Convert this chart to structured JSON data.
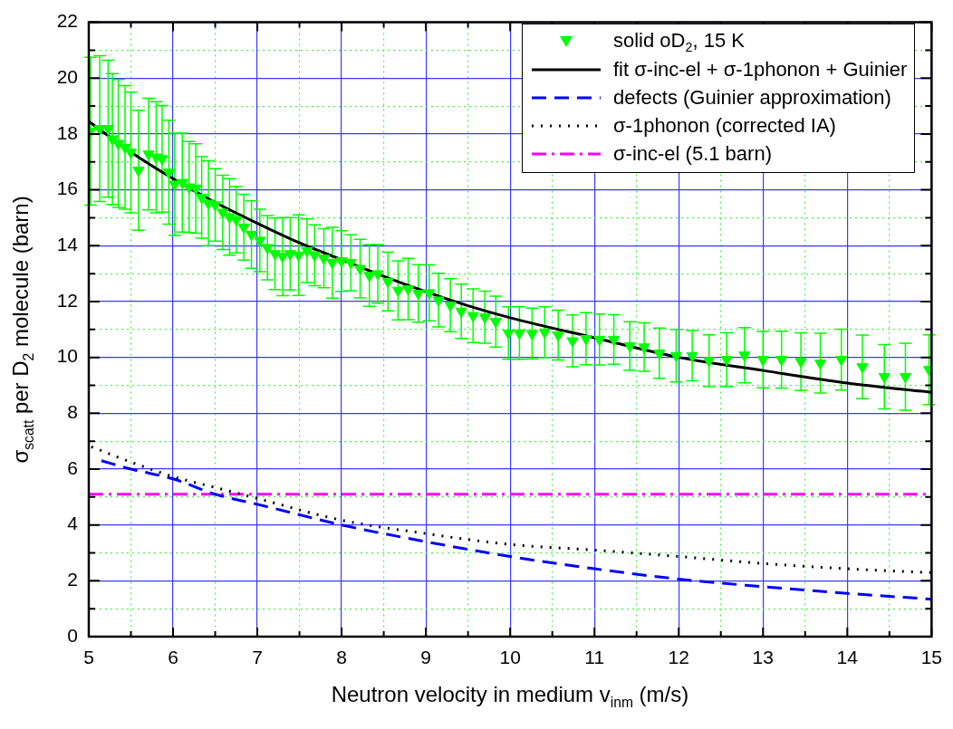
{
  "chart_data": {
    "type": "line",
    "xlabel": "Neutron velocity in medium v$_{inm}$ (m/s)",
    "ylabel": "σ$_{scatt}$ per D$_{2}$ molecule (barn)",
    "xlim": [
      5,
      15
    ],
    "ylim": [
      0,
      22
    ],
    "xticks": [
      5,
      {
        "value": 5.5,
        "label": null
      },
      6,
      {
        "value": 6.5,
        "label": null
      },
      7,
      {
        "value": 7.5,
        "label": null
      },
      8,
      {
        "value": 8.5,
        "label": null
      },
      9,
      {
        "value": 9.5,
        "label": null
      },
      10,
      {
        "value": 10.5,
        "label": null
      },
      11,
      {
        "value": 11.5,
        "label": null
      },
      12,
      {
        "value": 12.5,
        "label": null
      },
      13,
      {
        "value": 13.5,
        "label": null
      },
      14,
      {
        "value": 14.5,
        "label": null
      },
      15
    ],
    "yticks": [
      0,
      {
        "value": 1,
        "label": null
      },
      2,
      {
        "value": 3,
        "label": null
      },
      4,
      {
        "value": 5,
        "label": null
      },
      6,
      {
        "value": 7,
        "label": null
      },
      8,
      {
        "value": 9,
        "label": null
      },
      10,
      {
        "value": 11,
        "label": null
      },
      12,
      {
        "value": 13,
        "label": null
      },
      14,
      {
        "value": 15,
        "label": null
      },
      16,
      {
        "value": 17,
        "label": null
      },
      18,
      {
        "value": 19,
        "label": null
      },
      20,
      {
        "value": 21,
        "label": null
      },
      22
    ],
    "grid": true,
    "legend": "top right",
    "series": [
      {
        "name": "solid oD$_{2}$, 15 K",
        "type": "scatter",
        "marker": "triangle",
        "color": "#00ff00",
        "x": [
          5.02,
          5.13,
          5.23,
          5.28,
          5.35,
          5.43,
          5.5,
          5.59,
          5.71,
          5.8,
          5.87,
          5.95,
          6.02,
          6.11,
          6.19,
          6.27,
          6.34,
          6.42,
          6.5,
          6.59,
          6.67,
          6.75,
          6.84,
          6.93,
          7.03,
          7.12,
          7.21,
          7.3,
          7.39,
          7.49,
          7.59,
          7.68,
          7.79,
          7.89,
          8.0,
          8.11,
          8.22,
          8.33,
          8.43,
          8.55,
          8.67,
          8.79,
          8.91,
          9.04,
          9.15,
          9.29,
          9.42,
          9.56,
          9.7,
          9.83,
          9.98,
          10.11,
          10.26,
          10.41,
          10.57,
          10.74,
          10.9,
          11.06,
          11.23,
          11.42,
          11.59,
          11.77,
          11.97,
          12.16,
          12.36,
          12.57,
          12.78,
          13.0,
          13.22,
          13.45,
          13.68,
          13.93,
          14.18,
          14.44,
          14.69,
          14.97
        ],
        "values": [
          18.1,
          18.19,
          18.19,
          17.82,
          17.66,
          17.52,
          17.34,
          16.7,
          17.28,
          17.17,
          17.11,
          16.63,
          16.2,
          16.26,
          16.1,
          16.05,
          15.73,
          15.52,
          15.46,
          15.19,
          15.03,
          14.93,
          14.66,
          14.4,
          14.19,
          13.93,
          13.71,
          13.61,
          13.71,
          13.66,
          13.82,
          13.66,
          13.55,
          13.39,
          13.45,
          13.39,
          13.18,
          12.93,
          12.99,
          12.72,
          12.4,
          12.45,
          12.29,
          12.31,
          12.05,
          11.87,
          11.65,
          11.49,
          11.44,
          11.28,
          10.87,
          10.87,
          10.85,
          10.9,
          10.8,
          10.59,
          10.67,
          10.64,
          10.64,
          10.41,
          10.37,
          10.15,
          10.06,
          10.06,
          9.88,
          9.92,
          10.08,
          9.92,
          9.92,
          9.85,
          9.79,
          9.92,
          9.66,
          9.31,
          9.31,
          9.56
        ],
        "errors": [
          2.65,
          2.61,
          2.45,
          2.34,
          2.29,
          2.21,
          2.16,
          2.15,
          2.0,
          1.99,
          1.91,
          1.86,
          1.83,
          1.77,
          1.63,
          1.6,
          1.46,
          1.52,
          1.3,
          1.33,
          1.37,
          1.19,
          1.18,
          1.21,
          1.12,
          1.15,
          1.28,
          1.4,
          1.3,
          1.44,
          1.14,
          1.09,
          1.06,
          1.27,
          1.09,
          1.0,
          1.05,
          1.1,
          1.05,
          1.05,
          1.06,
          1.1,
          1.03,
          1.0,
          0.96,
          0.95,
          0.97,
          0.96,
          0.93,
          0.91,
          0.94,
          0.94,
          0.91,
          0.91,
          0.89,
          0.93,
          0.93,
          0.91,
          0.89,
          0.87,
          0.87,
          0.9,
          0.94,
          0.9,
          0.93,
          0.96,
          0.99,
          1.01,
          1.02,
          1.03,
          1.07,
          1.09,
          1.14,
          1.15,
          1.2,
          1.25
        ]
      },
      {
        "name": "fit σ-inc-el + σ-1phonon + Guinier",
        "marker": "none",
        "line_style": "solid",
        "color": "#000000",
        "x": [
          5,
          5.5,
          6,
          6.5,
          7,
          7.5,
          8,
          8.5,
          9,
          9.5,
          10,
          11,
          12,
          13,
          14,
          15
        ],
        "values": [
          18.45,
          17.35,
          16.4,
          15.55,
          14.8,
          14.1,
          13.5,
          12.9,
          12.35,
          11.85,
          11.42,
          10.7,
          10.0,
          9.53,
          9.08,
          8.75
        ]
      },
      {
        "name": "defects (Guinier approximation)",
        "marker": "none",
        "line_style": "dashed",
        "color": "#0000ff",
        "x": [
          5.15,
          5.5,
          6,
          6.5,
          7,
          8,
          9,
          10,
          11,
          12,
          13,
          14,
          15
        ],
        "values": [
          6.3,
          6.0,
          5.65,
          5.1,
          4.74,
          4.0,
          3.4,
          2.87,
          2.43,
          2.06,
          1.79,
          1.55,
          1.34
        ]
      },
      {
        "name": "σ-1phonon (corrected IA)",
        "marker": "none",
        "line_style": "dotted",
        "color": "#000000",
        "x": [
          5.03,
          5.5,
          6,
          6.5,
          7,
          8,
          9,
          10,
          11,
          12,
          13,
          14,
          15
        ],
        "values": [
          6.8,
          6.25,
          5.73,
          5.34,
          4.95,
          4.17,
          3.69,
          3.3,
          3.1,
          2.87,
          2.62,
          2.43,
          2.29
        ]
      },
      {
        "name": "σ-inc-el (5.1 barn)",
        "marker": "none",
        "line_style": "dashdot",
        "color": "#ff00ff",
        "x": [
          5,
          15
        ],
        "values": [
          5.1,
          5.1
        ]
      }
    ]
  }
}
